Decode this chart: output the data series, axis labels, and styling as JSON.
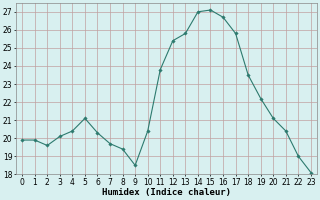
{
  "x": [
    0,
    1,
    2,
    3,
    4,
    5,
    6,
    7,
    8,
    9,
    10,
    11,
    12,
    13,
    14,
    15,
    16,
    17,
    18,
    19,
    20,
    21,
    22,
    23
  ],
  "y": [
    19.9,
    19.9,
    19.6,
    20.1,
    20.4,
    21.1,
    20.3,
    19.7,
    19.4,
    18.5,
    20.4,
    23.8,
    25.4,
    25.8,
    27.0,
    27.1,
    26.7,
    25.8,
    23.5,
    22.2,
    21.1,
    20.4,
    19.0,
    18.1
  ],
  "line_color": "#2d7a6e",
  "marker": "D",
  "marker_size": 1.8,
  "bg_color": "#d8f0f0",
  "grid_color": "#c0a0a0",
  "xlabel": "Humidex (Indice chaleur)",
  "ylim": [
    18,
    27.5
  ],
  "yticks": [
    18,
    19,
    20,
    21,
    22,
    23,
    24,
    25,
    26,
    27
  ],
  "xtick_labels": [
    "0",
    "1",
    "2",
    "3",
    "4",
    "5",
    "6",
    "7",
    "8",
    "9",
    "1011",
    "1213",
    "1415",
    "1617",
    "1819",
    "2021",
    "2223"
  ],
  "tick_fontsize": 5.5,
  "xlabel_fontsize": 6.5
}
